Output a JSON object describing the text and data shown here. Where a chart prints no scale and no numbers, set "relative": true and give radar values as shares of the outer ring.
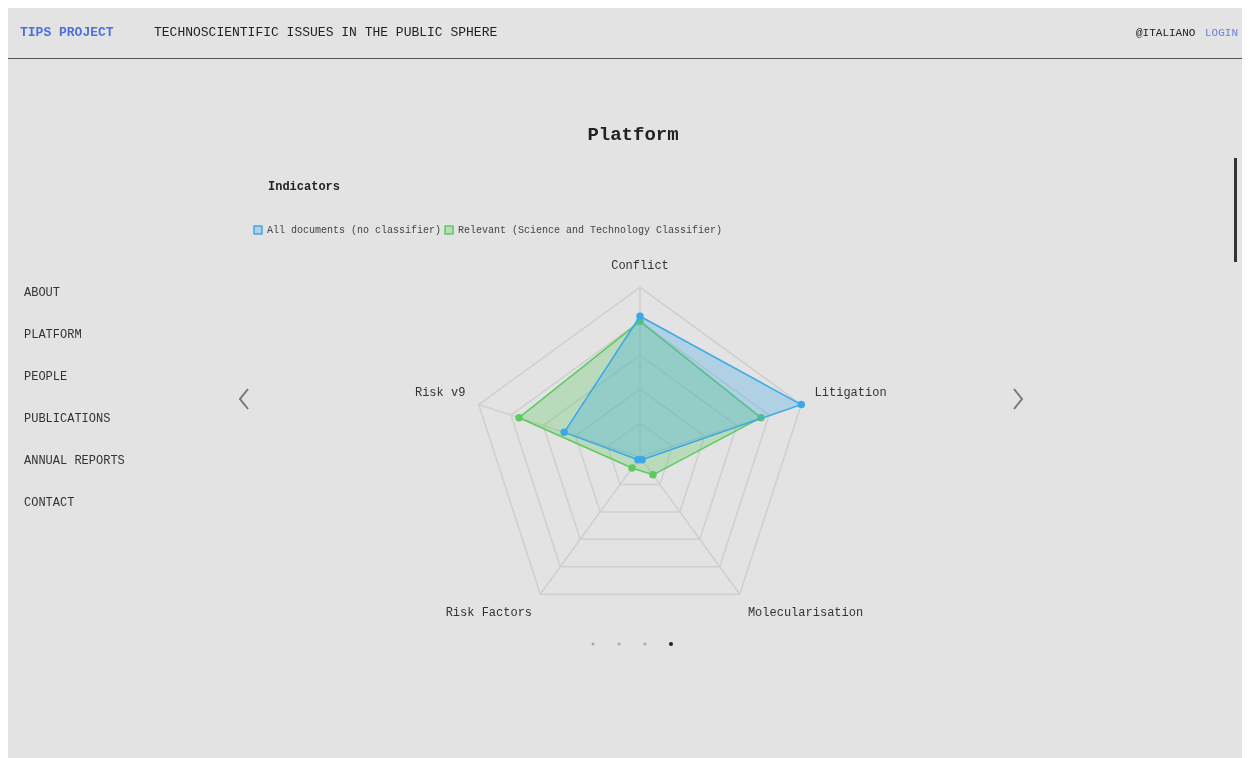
{
  "chart_data": {
    "type": "radar",
    "title": "Platform",
    "subtitle": "Indicators",
    "categories": [
      "Conflict",
      "Litigation",
      "Molecularisation",
      "Risk Factors",
      "Risk v9"
    ],
    "relative": true,
    "legend": "top left",
    "grid": true,
    "marker": "circle",
    "series": [
      {
        "name": "All documents (no classifier)",
        "color": "#3ba9e8",
        "values": [
          0.83,
          1.0,
          0.02,
          0.02,
          0.47
        ]
      },
      {
        "name": "Relevant (Science and Technology Classifier)",
        "color": "#5ccb5f",
        "values": [
          0.8,
          0.75,
          0.13,
          0.08,
          0.75
        ]
      }
    ],
    "annotations": [
      "TIPS PROJECT",
      "TECHNOSCIENTIFIC ISSUES IN THE PUBLIC SPHERE",
      "@ITALIANO",
      "LOGIN",
      "ABOUT",
      "PLATFORM",
      "PEOPLE",
      "PUBLICATIONS",
      "ANNUAL REPORTS",
      "CONTACT"
    ]
  }
}
